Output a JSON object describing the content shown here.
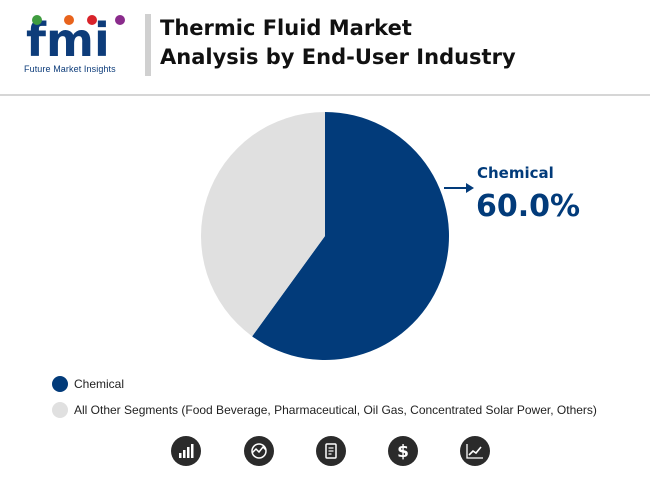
{
  "header": {
    "logo_text": "fmi",
    "logo_subtext": "Future Market Insights",
    "title_line1": "Thermic Fluid Market",
    "title_line2": "Analysis by End-User Industry"
  },
  "chart_data": {
    "type": "pie",
    "categories": [
      "Chemical",
      "All Other Segments (Food Beverage, Pharmaceutical, Oil Gas, Concentrated Solar Power, Others)"
    ],
    "values": [
      60.0,
      40.0
    ],
    "colors": [
      "#023b7a",
      "#e0e0e0"
    ],
    "callout": {
      "label": "Chemical",
      "value": "60.0%"
    },
    "legend_placement": "bottom-left"
  },
  "legend": [
    {
      "label": "Chemical",
      "color": "#023b7a"
    },
    {
      "label": "All Other Segments (Food Beverage, Pharmaceutical, Oil Gas, Concentrated Solar Power, Others)",
      "color": "#e0e0e0"
    }
  ],
  "footer_icons": [
    "bar-chart-icon",
    "globe-chart-icon",
    "report-icon",
    "dollar-icon",
    "line-chart-icon"
  ],
  "colors": {
    "accent": "#023b7a",
    "icon_bg": "#2b2b2b"
  }
}
